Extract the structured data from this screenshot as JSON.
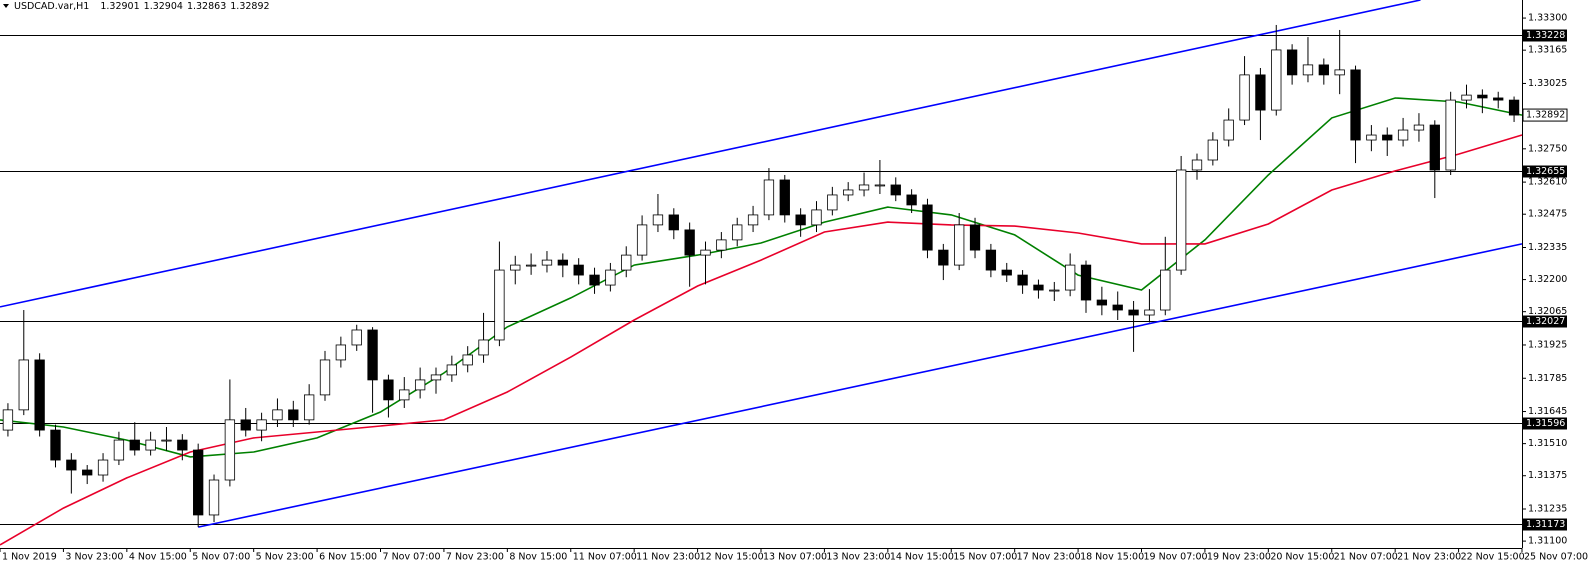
{
  "chart_data": {
    "type": "candlestick",
    "symbol": "USDCAD.var,H1",
    "quote": [
      1.32901,
      1.32904,
      1.32863,
      1.32892
    ],
    "up_color": "#ffffff",
    "down_color": "#000000",
    "outline_color": "#000000",
    "xlim": [
      0,
      96
    ],
    "ylim": [
      1.31071,
      1.33376
    ],
    "yticks": [
      {
        "value": 1.333,
        "label": "1.33300"
      },
      1.33165,
      1.33025,
      {
        "value": 1.3275,
        "label": "1.32750"
      },
      {
        "value": 1.3261,
        "label": "1.32610"
      },
      1.32475,
      1.32335,
      {
        "value": 1.322,
        "label": "1.32200"
      },
      1.32065,
      1.31925,
      1.31785,
      1.31645,
      {
        "value": 1.3151,
        "label": "1.31510"
      },
      1.31375,
      1.31235,
      {
        "value": 1.311,
        "label": "1.31100"
      }
    ],
    "xticks": [
      {
        "value": 0,
        "label": "1 Nov 2019"
      },
      {
        "value": 4,
        "label": "3 Nov 23:00"
      },
      {
        "value": 8,
        "label": "4 Nov 15:00"
      },
      {
        "value": 12,
        "label": "5 Nov 07:00"
      },
      {
        "value": 16,
        "label": "5 Nov 23:00"
      },
      {
        "value": 20,
        "label": "6 Nov 15:00"
      },
      {
        "value": 24,
        "label": "7 Nov 07:00"
      },
      {
        "value": 28,
        "label": "7 Nov 23:00"
      },
      {
        "value": 32,
        "label": "8 Nov 15:00"
      },
      {
        "value": 36,
        "label": "11 Nov 07:00"
      },
      {
        "value": 40,
        "label": "11 Nov 23:00"
      },
      {
        "value": 44,
        "label": "12 Nov 15:00"
      },
      {
        "value": 48,
        "label": "13 Nov 07:00"
      },
      {
        "value": 52,
        "label": "13 Nov 23:00"
      },
      {
        "value": 56,
        "label": "14 Nov 15:00"
      },
      {
        "value": 60,
        "label": "15 Nov 07:00"
      },
      {
        "value": 64,
        "label": "17 Nov 23:00"
      },
      {
        "value": 68,
        "label": "18 Nov 15:00"
      },
      {
        "value": 72,
        "label": "19 Nov 07:00"
      },
      {
        "value": 76,
        "label": "19 Nov 23:00"
      },
      {
        "value": 80,
        "label": "20 Nov 15:00"
      },
      {
        "value": 84,
        "label": "21 Nov 07:00"
      },
      {
        "value": 88,
        "label": "21 Nov 23:00"
      },
      {
        "value": 92,
        "label": "22 Nov 15:00"
      },
      {
        "value": 96,
        "label": "25 Nov 07:00"
      }
    ],
    "open": [
      1.31567,
      1.31652,
      1.31862,
      1.31567,
      1.31441,
      1.31399,
      1.31378,
      1.31441,
      1.31525,
      1.31483,
      1.31525,
      1.31525,
      1.31483,
      1.3121,
      1.31357,
      1.3161,
      1.31567,
      1.3161,
      1.31652,
      1.3161,
      1.31715,
      1.31862,
      1.31925,
      1.31988,
      1.31778,
      1.31694,
      1.31736,
      1.31778,
      1.31799,
      1.31841,
      1.31883,
      1.31946,
      1.3224,
      1.32261,
      1.32261,
      1.32282,
      1.32261,
      1.32219,
      1.32177,
      1.3224,
      1.32303,
      1.3243,
      1.32472,
      1.32409,
      1.32303,
      1.32324,
      1.32367,
      1.3243,
      1.32472,
      1.32619,
      1.32472,
      1.3243,
      1.32493,
      1.32556,
      1.32577,
      1.32598,
      1.32598,
      1.32556,
      1.32514,
      1.32324,
      1.32261,
      1.3243,
      1.32324,
      1.3224,
      1.32219,
      1.32177,
      1.32156,
      1.32156,
      1.32261,
      1.32114,
      1.32093,
      1.32072,
      1.32051,
      1.32072,
      1.3224,
      1.32661,
      1.32703,
      1.32787,
      1.32871,
      1.33061,
      1.32913,
      1.33166,
      1.33061,
      1.33103,
      1.33061,
      1.33082,
      1.32787,
      1.32808,
      1.32787,
      1.32829,
      1.3285,
      1.32661,
      1.32955,
      1.32976,
      1.32964,
      1.32955
    ],
    "high": [
      1.3168,
      1.32072,
      1.3189,
      1.3159,
      1.3147,
      1.3142,
      1.3147,
      1.3156,
      1.316,
      1.3156,
      1.3158,
      1.3155,
      1.3151,
      1.3138,
      1.3178,
      1.3166,
      1.3164,
      1.317,
      1.3169,
      1.3176,
      1.319,
      1.3196,
      1.3201,
      1.32,
      1.318,
      1.3179,
      1.3183,
      1.3183,
      1.3188,
      1.3192,
      1.3206,
      1.3236,
      1.323,
      1.3231,
      1.3232,
      1.3231,
      1.3229,
      1.3225,
      1.3227,
      1.3234,
      1.3247,
      1.3256,
      1.325,
      1.3244,
      1.3236,
      1.324,
      1.3246,
      1.3251,
      1.32669,
      1.3264,
      1.325,
      1.3253,
      1.3259,
      1.3261,
      1.3265,
      1.32703,
      1.3263,
      1.3258,
      1.3254,
      1.3235,
      1.3248,
      1.3246,
      1.3235,
      1.3227,
      1.3224,
      1.322,
      1.3219,
      1.3231,
      1.3228,
      1.3217,
      1.3215,
      1.3211,
      1.3216,
      1.3238,
      1.3272,
      1.3273,
      1.3282,
      1.3292,
      1.3314,
      1.3309,
      1.33271,
      1.3319,
      1.3322,
      1.3313,
      1.3325,
      1.331,
      1.3285,
      1.3284,
      1.3288,
      1.329,
      1.3287,
      1.3299,
      1.3302,
      1.33,
      1.3299,
      1.3297
    ],
    "low": [
      1.3154,
      1.3163,
      1.3154,
      1.3141,
      1.313,
      1.3134,
      1.3135,
      1.3142,
      1.3146,
      1.3146,
      1.3148,
      1.3144,
      1.31159,
      1.3118,
      1.3133,
      1.3154,
      1.3152,
      1.3158,
      1.3158,
      1.3159,
      1.3169,
      1.3183,
      1.319,
      1.3164,
      1.3162,
      1.3166,
      1.317,
      1.3172,
      1.3177,
      1.3181,
      1.3185,
      1.3192,
      1.3218,
      1.3222,
      1.3223,
      1.3221,
      1.3218,
      1.3214,
      1.3215,
      1.3221,
      1.3228,
      1.324,
      1.3237,
      1.3217,
      1.3218,
      1.3229,
      1.3234,
      1.324,
      1.3245,
      1.3244,
      1.3238,
      1.324,
      1.3247,
      1.3253,
      1.3255,
      1.3256,
      1.3253,
      1.3248,
      1.3229,
      1.32198,
      1.3224,
      1.3229,
      1.3221,
      1.3219,
      1.3214,
      1.3212,
      1.3211,
      1.3213,
      1.3206,
      1.3205,
      1.3203,
      1.31896,
      1.3202,
      1.3205,
      1.3222,
      1.3262,
      1.3268,
      1.3276,
      1.3285,
      1.32787,
      1.3289,
      1.3302,
      1.3303,
      1.3302,
      1.3298,
      1.3269,
      1.3274,
      1.3272,
      1.3276,
      1.3278,
      1.32543,
      1.3264,
      1.3292,
      1.329,
      1.3292,
      1.32863
    ],
    "close": [
      1.31652,
      1.31862,
      1.31567,
      1.31441,
      1.31399,
      1.31378,
      1.31441,
      1.31525,
      1.31483,
      1.31525,
      1.31525,
      1.31483,
      1.3121,
      1.31357,
      1.3161,
      1.31567,
      1.3161,
      1.31652,
      1.3161,
      1.31715,
      1.31862,
      1.31925,
      1.31988,
      1.31778,
      1.31694,
      1.31736,
      1.31778,
      1.31799,
      1.31841,
      1.31883,
      1.31946,
      1.3224,
      1.32261,
      1.32261,
      1.32282,
      1.32261,
      1.32219,
      1.32177,
      1.3224,
      1.32303,
      1.3243,
      1.32472,
      1.32409,
      1.32303,
      1.32324,
      1.32367,
      1.3243,
      1.32472,
      1.32619,
      1.32472,
      1.3243,
      1.32493,
      1.32556,
      1.32577,
      1.32598,
      1.32598,
      1.32556,
      1.32514,
      1.32324,
      1.32261,
      1.3243,
      1.32324,
      1.3224,
      1.32219,
      1.32177,
      1.32156,
      1.32156,
      1.32261,
      1.32114,
      1.32093,
      1.32072,
      1.32051,
      1.32072,
      1.3224,
      1.32661,
      1.32703,
      1.32787,
      1.32871,
      1.33061,
      1.32913,
      1.33166,
      1.33061,
      1.33103,
      1.33061,
      1.33082,
      1.32787,
      1.32808,
      1.32787,
      1.32829,
      1.3285,
      1.32661,
      1.32955,
      1.32976,
      1.32964,
      1.32955,
      1.32892
    ],
    "lines": [
      {
        "color": "#008000",
        "x": [
          0,
          4,
          8,
          12,
          16,
          20,
          24,
          28,
          32,
          36,
          40,
          44,
          48,
          52,
          56,
          60,
          64,
          68,
          72,
          76,
          80,
          84,
          88,
          92,
          96
        ],
        "values": [
          1.3161,
          1.3158,
          1.31525,
          1.31454,
          1.31475,
          1.31534,
          1.31643,
          1.31807,
          1.32001,
          1.32123,
          1.32261,
          1.32303,
          1.32354,
          1.32442,
          1.32505,
          1.32472,
          1.32388,
          1.32219,
          1.32156,
          1.32367,
          1.3264,
          1.3288,
          1.32964,
          1.32947,
          1.32892
        ]
      },
      {
        "color": "#e8002a",
        "x": [
          0,
          4,
          8,
          12,
          16,
          20,
          24,
          28,
          32,
          36,
          40,
          44,
          48,
          52,
          56,
          60,
          64,
          68,
          72,
          76,
          80,
          84,
          88,
          92,
          96
        ],
        "values": [
          1.31084,
          1.31239,
          1.31366,
          1.31475,
          1.31534,
          1.31559,
          1.31584,
          1.3161,
          1.31727,
          1.31874,
          1.3203,
          1.32173,
          1.32282,
          1.324,
          1.32442,
          1.3243,
          1.32425,
          1.32396,
          1.3235,
          1.3235,
          1.32434,
          1.32577,
          1.32657,
          1.32728,
          1.32808
        ]
      },
      {
        "color": "#0000ff",
        "x": [
          0,
          89.6
        ],
        "values": [
          1.32085,
          1.33376
        ]
      },
      {
        "color": "#0000ff",
        "x": [
          12.5,
          96
        ],
        "values": [
          1.31159,
          1.3235
        ]
      }
    ],
    "levels": [
      1.33228,
      1.32655,
      1.32027,
      1.31596,
      1.31173
    ],
    "level_color": "#000000",
    "last_price": 1.32892
  }
}
